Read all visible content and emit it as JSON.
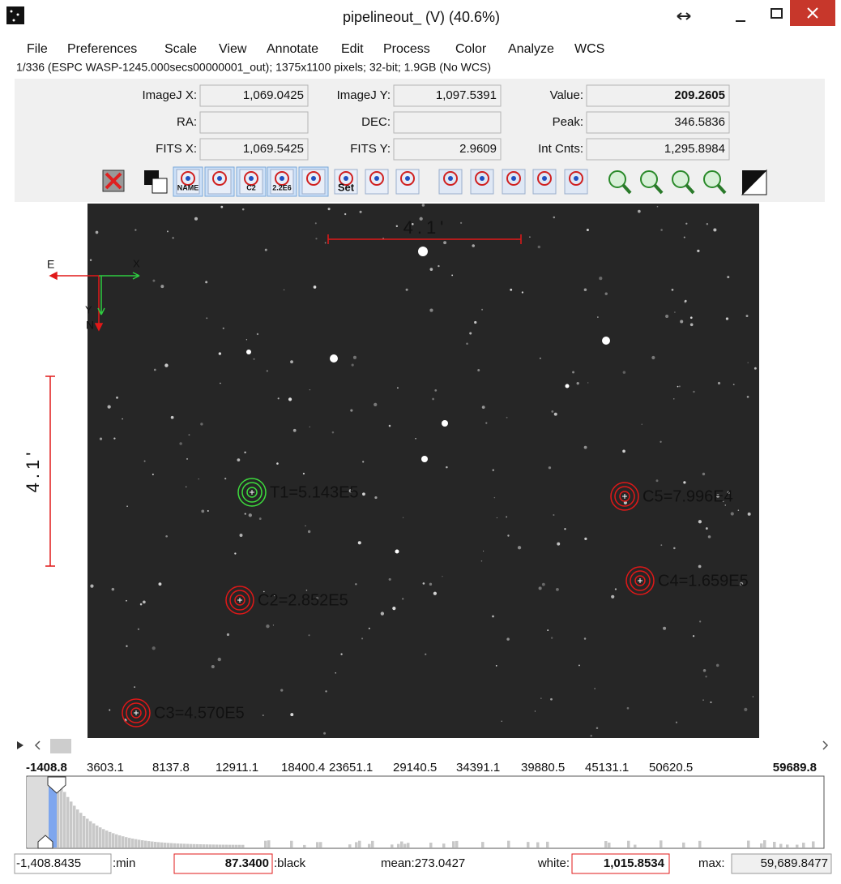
{
  "title_bar": {
    "title": "pipelineout_ (V) (40.6%)"
  },
  "menu": [
    "File",
    "Preferences",
    "Scale",
    "View",
    "Annotate",
    "Edit",
    "Process",
    "Color",
    "Analyze",
    "WCS"
  ],
  "info": "1/336 (ESPC WASP-1245.000secs00000001_out); 1375x1100 pixels; 32-bit; 1.9GB (No WCS)",
  "fields": [
    {
      "label": "ImageJ X:",
      "value": "1,069.0425"
    },
    {
      "label": "ImageJ Y:",
      "value": "1,097.5391"
    },
    {
      "label": "Value:",
      "value": "209.2605"
    },
    {
      "label": "RA:"
    },
    {
      "label": "DEC:"
    },
    {
      "label": "Peak:",
      "value": "346.5836"
    },
    {
      "label": "FITS X:",
      "value": "1,069.5425"
    },
    {
      "label": "FITS Y:",
      "value": "2.9609"
    },
    {
      "label": "Int Cnts:",
      "value": "1,295.8984"
    }
  ],
  "toolbar_labels": [
    "NAME",
    "C2",
    "2.2E6",
    "Set"
  ],
  "image": {
    "scale_labels": [
      "4.1'",
      "4.1'"
    ],
    "compass": [
      "E",
      "N",
      "X",
      "Y"
    ],
    "apertures": [
      {
        "label": "T1=5.143E5",
        "color": "#3ddc3d"
      },
      {
        "label": "C5=7.996E4",
        "color": "#e01818"
      },
      {
        "label": "C4=1.659E5",
        "color": "#e01818"
      },
      {
        "label": "C2=2.852E5",
        "color": "#e01818"
      },
      {
        "label": "C3=4.570E5",
        "color": "#e01818"
      }
    ]
  },
  "histogram": {
    "ticks": [
      "-1408.8",
      "3603.1",
      "8137.8",
      "12911.1",
      "18400.4",
      "23651.1",
      "29140.5",
      "34391.1",
      "39880.5",
      "45131.1",
      "50620.5",
      "59689.8"
    ]
  },
  "stats": {
    "min": "-1,408.8435",
    "min_label": ":min",
    "black": "87.3400",
    "black_label": ":black",
    "mean": "mean:273.0427",
    "white_label": "white:",
    "white": "1,015.8534",
    "max_label": "max:",
    "max": "59,689.8477"
  }
}
